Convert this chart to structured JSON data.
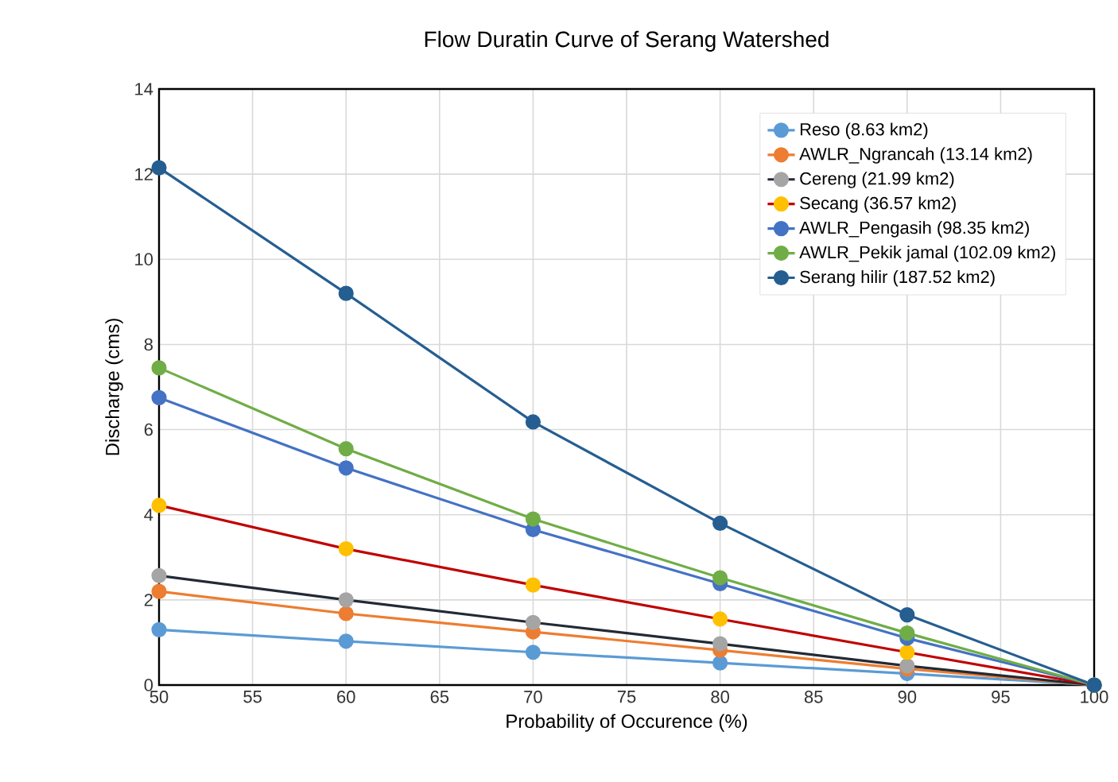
{
  "chart_data": {
    "type": "line",
    "title": "Flow Duratin Curve of Serang Watershed",
    "xlabel": "Probability of Occurence (%)",
    "ylabel": "Discharge (cms)",
    "x": [
      50,
      60,
      70,
      80,
      90,
      100
    ],
    "xlim": [
      50,
      100
    ],
    "xticks": [
      50,
      55,
      60,
      65,
      70,
      75,
      80,
      85,
      90,
      95,
      100
    ],
    "ylim": [
      0,
      14
    ],
    "yticks": [
      0,
      2,
      4,
      6,
      8,
      10,
      12,
      14
    ],
    "grid": true,
    "legend": "top right",
    "marker": "circle",
    "line_style": "solid",
    "series": [
      {
        "name": "Reso (8.63 km2)",
        "color": "#5b9bd5",
        "values": [
          1.3,
          1.03,
          0.77,
          0.52,
          0.27,
          0
        ]
      },
      {
        "name": "AWLR_Ngrancah (13.14 km2)",
        "color": "#ed7d31",
        "values": [
          2.2,
          1.68,
          1.25,
          0.82,
          0.38,
          0
        ]
      },
      {
        "name": "Cereng (21.99 km2)",
        "color": "#222a35",
        "colors": [
          "#a5a5a5",
          "#a5a5a5",
          "#a5a5a5",
          "#a5a5a5",
          "#a5a5a5",
          "#a5a5a5"
        ],
        "values": [
          2.57,
          2.0,
          1.47,
          0.97,
          0.45,
          0
        ]
      },
      {
        "name": "Secang (36.57 km2)",
        "color": "#c00000",
        "colors": [
          "#ffc000",
          "#ffc000",
          "#ffc000",
          "#ffc000",
          "#ffc000",
          "#ffc000"
        ],
        "values": [
          4.22,
          3.2,
          2.35,
          1.55,
          0.77,
          0
        ]
      },
      {
        "name": "AWLR_Pengasih (98.35 km2)",
        "color": "#4472c4",
        "values": [
          6.75,
          5.1,
          3.65,
          2.38,
          1.1,
          0
        ]
      },
      {
        "name": "AWLR_Pekik jamal (102.09 km2)",
        "color": "#70ad47",
        "values": [
          7.45,
          5.55,
          3.9,
          2.52,
          1.22,
          0
        ]
      },
      {
        "name": "Serang hilir (187.52 km2)",
        "color": "#255e91",
        "values": [
          12.15,
          9.2,
          6.18,
          3.8,
          1.65,
          0
        ]
      }
    ]
  }
}
